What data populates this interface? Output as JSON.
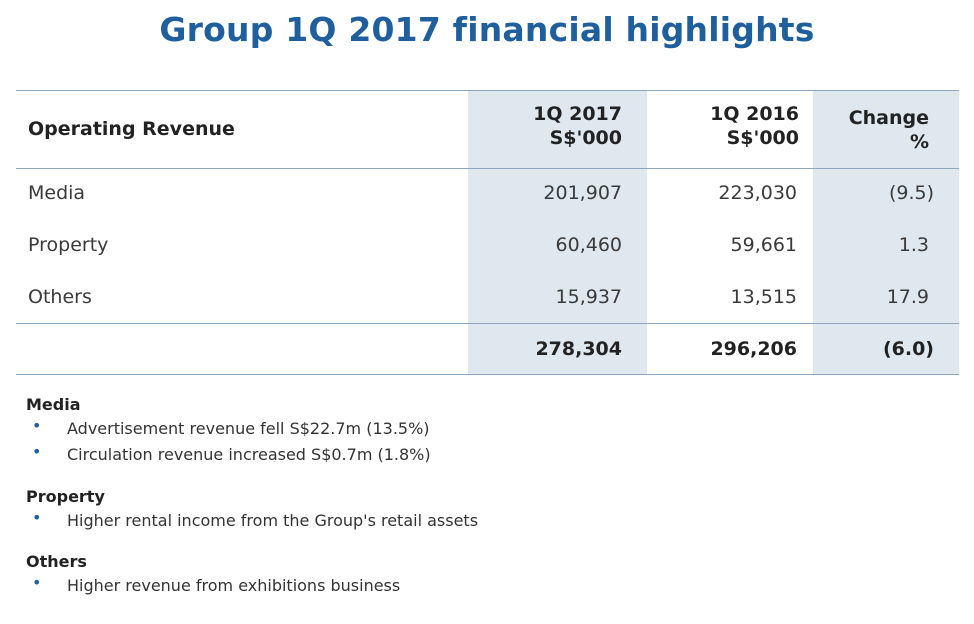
{
  "title": "Group 1Q 2017 financial highlights",
  "table": {
    "header": {
      "label": "Operating Revenue",
      "col1_line1": "1Q 2017",
      "col1_line2": "S$'000",
      "col2_line1": "1Q 2016",
      "col2_line2": "S$'000",
      "col3_line1": "Change",
      "col3_line2": "%"
    },
    "rows": [
      {
        "label": "Media",
        "q2017": "201,907",
        "q2016": "223,030",
        "change": "(9.5)"
      },
      {
        "label": "Property",
        "q2017": "60,460",
        "q2016": "59,661",
        "change": "1.3"
      },
      {
        "label": "Others",
        "q2017": "15,937",
        "q2016": "13,515",
        "change": "17.9"
      }
    ],
    "total": {
      "q2017": "278,304",
      "q2016": "296,206",
      "change": "(6.0)"
    }
  },
  "notes": {
    "media": {
      "title": "Media",
      "items": [
        "Advertisement revenue fell S$22.7m (13.5%)",
        "Circulation revenue increased S$0.7m (1.8%)"
      ]
    },
    "property": {
      "title": "Property",
      "items": [
        "Higher rental income from the Group's retail assets"
      ]
    },
    "others": {
      "title": "Others",
      "items": [
        "Higher revenue from exhibitions business"
      ]
    },
    "bullet_color": "#1f5f9e"
  },
  "colors": {
    "title": "#1f5f9e",
    "shade": "#dfe8ee",
    "rule": "#8aa7bf"
  }
}
